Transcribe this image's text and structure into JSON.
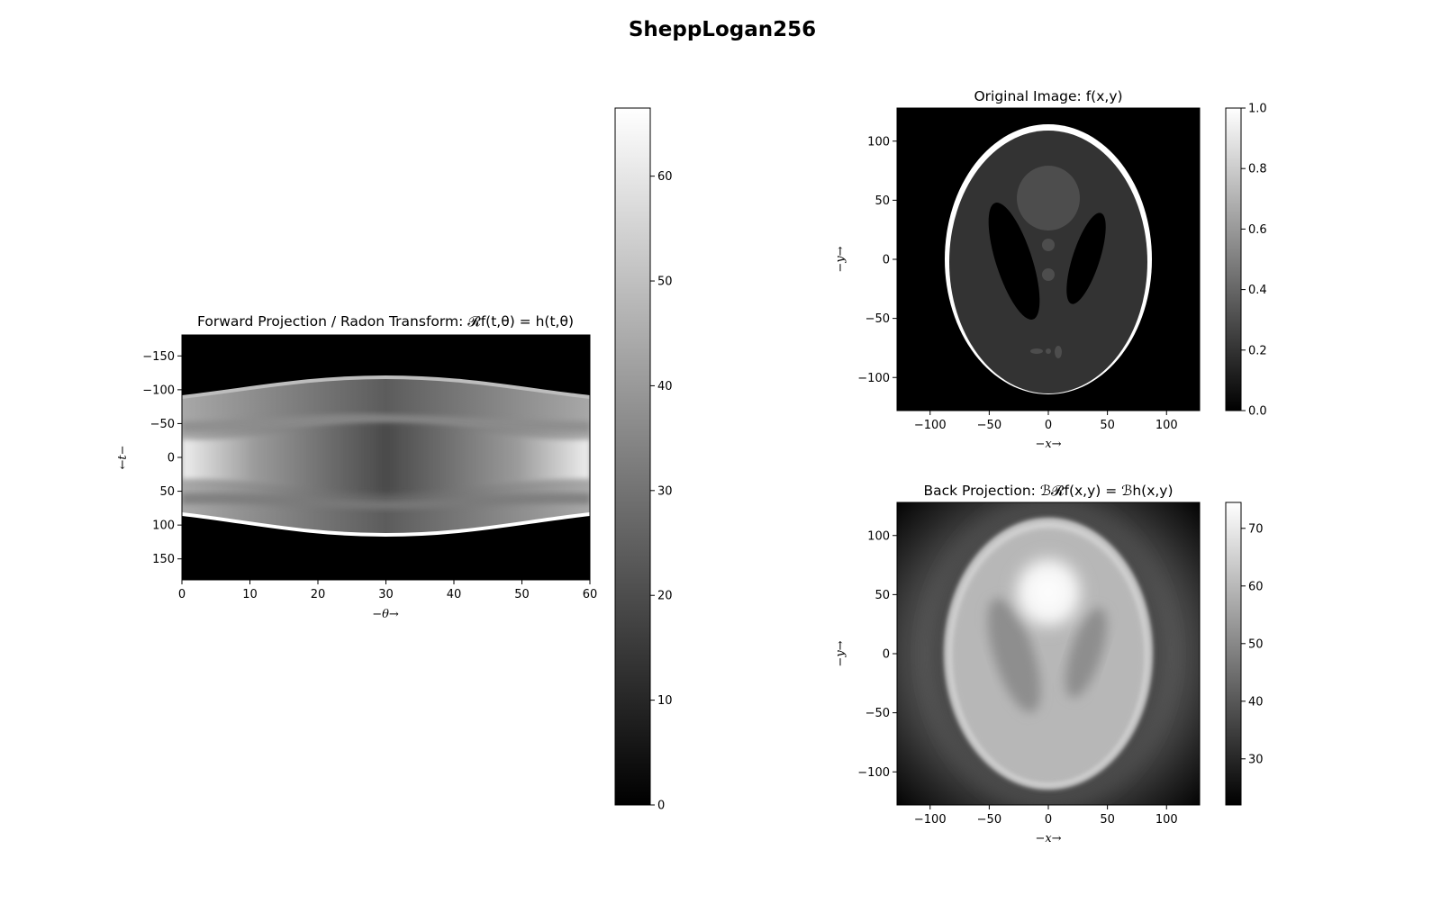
{
  "figure": {
    "title": "SheppLogan256"
  },
  "chart_data": [
    {
      "id": "sinogram",
      "type": "heatmap",
      "title": "Forward Projection / Radon Transform: 𝓡f(t,θ) = h(t,θ)",
      "xlabel": "−θ→",
      "ylabel": "←t−",
      "xlim": [
        0,
        60
      ],
      "ylim": [
        181,
        -181
      ],
      "xticks": [
        0,
        10,
        20,
        30,
        40,
        50,
        60
      ],
      "xtick_labels": [
        "0",
        "10",
        "20",
        "30",
        "40",
        "50",
        "60"
      ],
      "yticks": [
        -150,
        -100,
        -50,
        0,
        50,
        100,
        150
      ],
      "ytick_labels": [
        "−150",
        "−100",
        "−50",
        "0",
        "50",
        "100",
        "150"
      ],
      "colormap": "gray",
      "colorbar": {
        "range": [
          0,
          66.5
        ],
        "ticks": [
          0,
          10,
          20,
          30,
          40,
          50,
          60
        ],
        "tick_labels": [
          "0",
          "10",
          "20",
          "30",
          "40",
          "50",
          "60"
        ]
      },
      "sinogram_profile": {
        "support_halfwidth_theta0": 87,
        "support_halfwidth_theta30": 115,
        "edge_peak_value": 64,
        "center_value_theta0": 62,
        "center_value_theta30": 30,
        "band_value": 42
      }
    },
    {
      "id": "original",
      "type": "heatmap",
      "title": "Original Image: f(x,y)",
      "xlabel": "−x→",
      "ylabel": "−y→",
      "xlim": [
        -128,
        128
      ],
      "ylim": [
        -128,
        128
      ],
      "xticks": [
        -100,
        -50,
        0,
        50,
        100
      ],
      "xtick_labels": [
        "−100",
        "−50",
        "0",
        "50",
        "100"
      ],
      "yticks": [
        -100,
        -50,
        0,
        50,
        100
      ],
      "ytick_labels": [
        "−100",
        "−50",
        "0",
        "50",
        "100"
      ],
      "colormap": "gray",
      "colorbar": {
        "range": [
          0,
          1
        ],
        "ticks": [
          0,
          0.2,
          0.4,
          0.6,
          0.8,
          1.0
        ],
        "tick_labels": [
          "0.0",
          "0.2",
          "0.4",
          "0.6",
          "0.8",
          "1.0"
        ]
      },
      "phantom_values": {
        "skull": 1.0,
        "brain": 0.2,
        "ventricles": 0.0,
        "blobs": 0.3
      }
    },
    {
      "id": "backprojection",
      "type": "heatmap",
      "title": "Back Projection: ℬ𝓡f(x,y) = ℬh(x,y)",
      "xlabel": "−x→",
      "ylabel": "−y→",
      "xlim": [
        -128,
        128
      ],
      "ylim": [
        -128,
        128
      ],
      "xticks": [
        -100,
        -50,
        0,
        50,
        100
      ],
      "xtick_labels": [
        "−100",
        "−50",
        "0",
        "50",
        "100"
      ],
      "yticks": [
        -100,
        -50,
        0,
        50,
        100
      ],
      "ytick_labels": [
        "−100",
        "−50",
        "0",
        "50",
        "100"
      ],
      "colormap": "gray",
      "colorbar": {
        "range": [
          22,
          74.5
        ],
        "ticks": [
          30,
          40,
          50,
          60,
          70
        ],
        "tick_labels": [
          "30",
          "40",
          "50",
          "60",
          "70"
        ]
      },
      "value_estimates": {
        "corner": 24,
        "background_near": 38,
        "brain": 60,
        "ventricles": 52,
        "top_blob": 72,
        "rim": 66
      }
    }
  ]
}
